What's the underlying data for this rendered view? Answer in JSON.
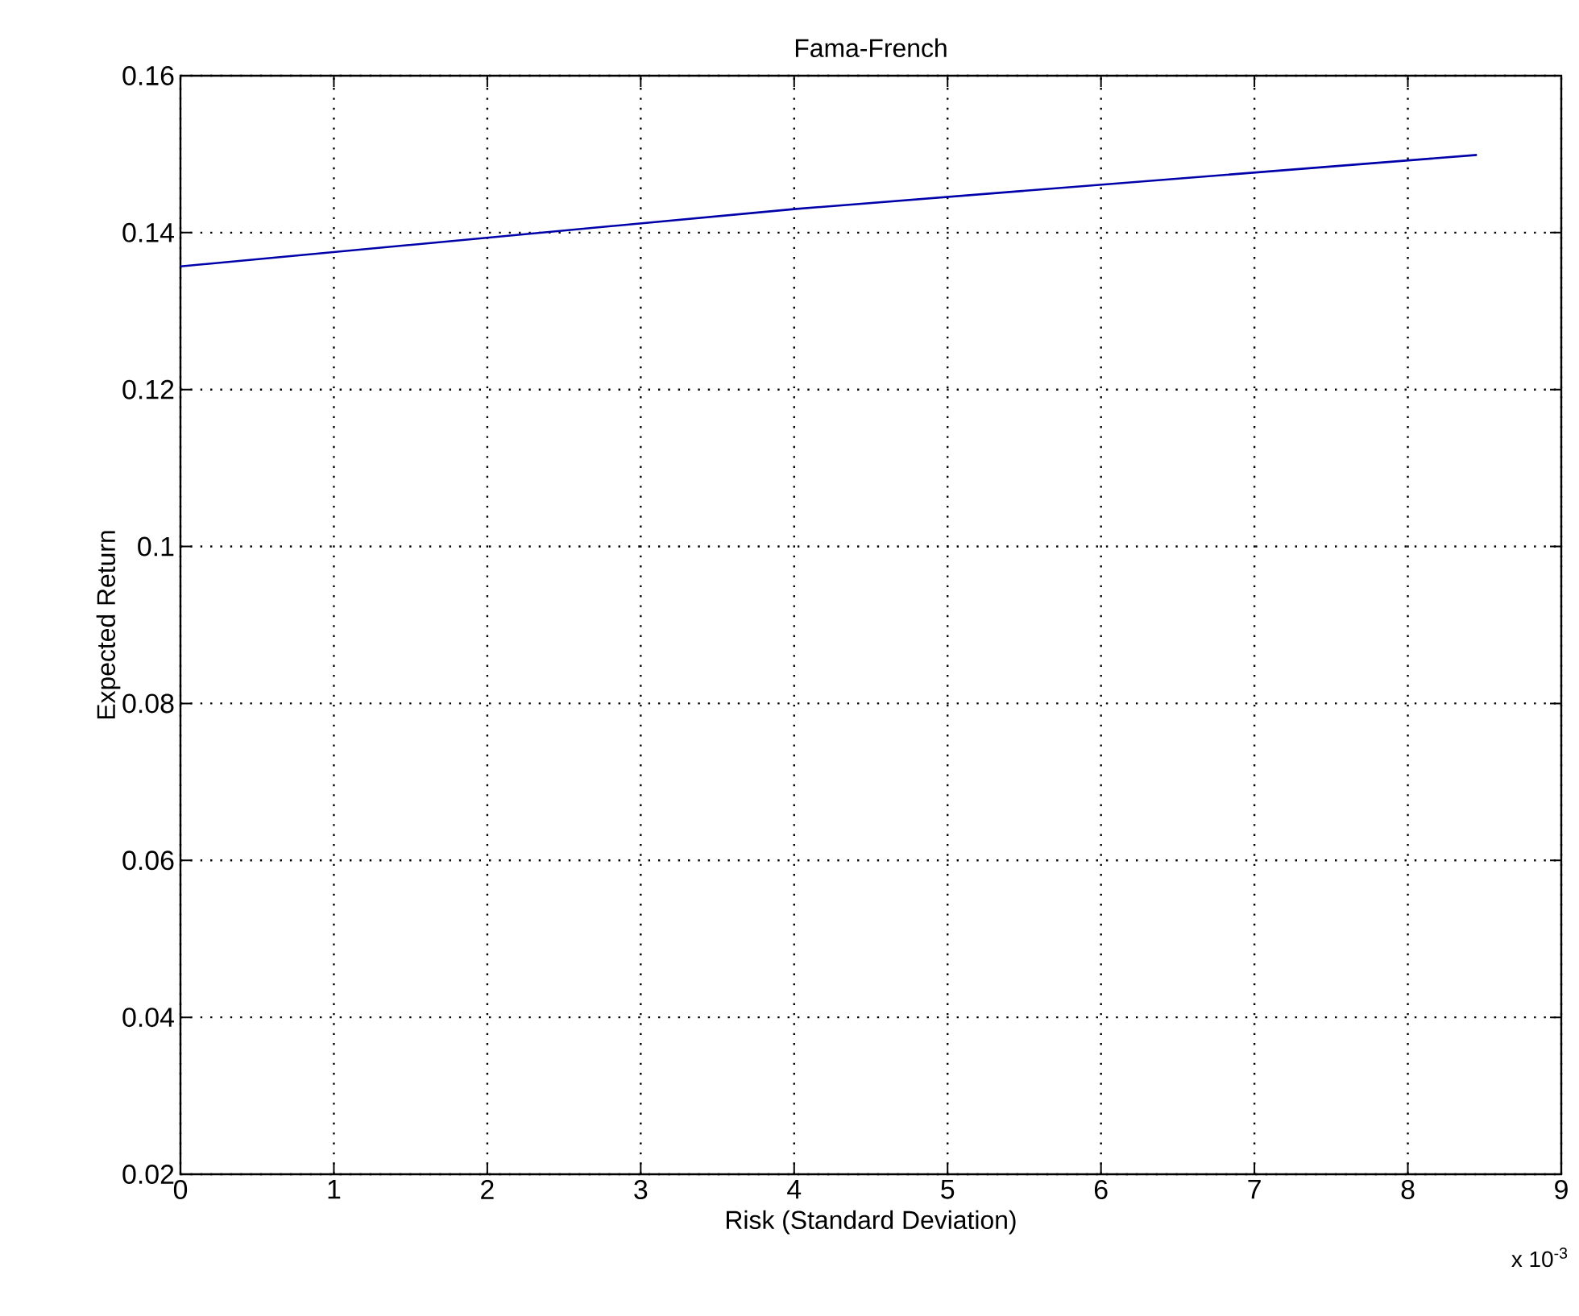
{
  "chart_data": {
    "type": "line",
    "title": "Fama-French",
    "xlabel": "Risk (Standard Deviation)",
    "ylabel": "Expected Return",
    "x": [
      0,
      4,
      8.45
    ],
    "series": [
      {
        "color": "#0000aa",
        "values": [
          0.1357,
          0.143,
          0.1499
        ]
      }
    ],
    "xlim": [
      0,
      9
    ],
    "xticks": [
      0,
      1,
      2,
      3,
      4,
      5,
      6,
      7,
      8,
      9
    ],
    "ylim": [
      0.02,
      0.16
    ],
    "yticks": [
      0.02,
      0.04,
      0.06,
      0.08,
      0.1,
      0.12,
      0.14,
      0.16
    ],
    "annotations": [
      "x 10$^{-3}$"
    ],
    "grid": true,
    "marker": "none",
    "line_style": "solid"
  }
}
